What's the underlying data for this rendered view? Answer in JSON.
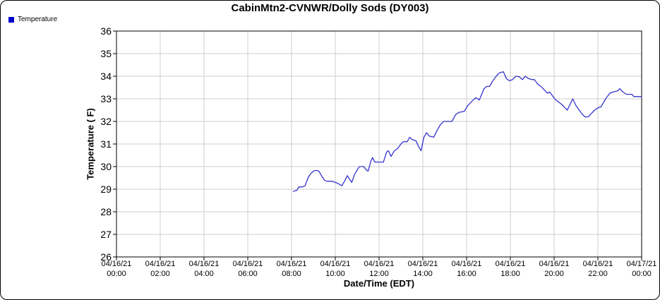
{
  "window": {
    "background": "#ffffff",
    "border_color": "#000000"
  },
  "title": "CabinMtn2-CVNWR/Dolly Sods (DY003)",
  "legend": {
    "position": "top-left",
    "items": [
      {
        "label": "Temperature",
        "color": "#0000cc"
      }
    ]
  },
  "chart_data": {
    "type": "line",
    "title": "CabinMtn2-CVNWR/Dolly Sods (DY003)",
    "xlabel": "Date/Time (EDT)",
    "ylabel": "Temperature ( F)",
    "ylim": [
      26,
      36
    ],
    "xlim_hours": [
      0,
      24
    ],
    "grid": true,
    "grid_color": "#cccccc",
    "axis_color": "#000000",
    "line_color": "#3333cc",
    "y_ticks": [
      26,
      27,
      28,
      29,
      30,
      31,
      32,
      33,
      34,
      35,
      36
    ],
    "x_ticks": [
      {
        "hour": 0,
        "date": "04/16/21",
        "time": "00:00"
      },
      {
        "hour": 2,
        "date": "04/16/21",
        "time": "02:00"
      },
      {
        "hour": 4,
        "date": "04/16/21",
        "time": "04:00"
      },
      {
        "hour": 6,
        "date": "04/16/21",
        "time": "06:00"
      },
      {
        "hour": 8,
        "date": "04/16/21",
        "time": "08:00"
      },
      {
        "hour": 10,
        "date": "04/16/21",
        "time": "10:00"
      },
      {
        "hour": 12,
        "date": "04/16/21",
        "time": "12:00"
      },
      {
        "hour": 14,
        "date": "04/16/21",
        "time": "14:00"
      },
      {
        "hour": 16,
        "date": "04/16/21",
        "time": "16:00"
      },
      {
        "hour": 18,
        "date": "04/16/21",
        "time": "18:00"
      },
      {
        "hour": 20,
        "date": "04/16/21",
        "time": "20:00"
      },
      {
        "hour": 22,
        "date": "04/16/21",
        "time": "22:00"
      },
      {
        "hour": 24,
        "date": "04/17/21",
        "time": "00:00"
      }
    ],
    "series": [
      {
        "name": "Temperature",
        "points": [
          [
            8.08,
            28.9
          ],
          [
            8.17,
            28.93
          ],
          [
            8.25,
            28.95
          ],
          [
            8.33,
            29.1
          ],
          [
            8.5,
            29.1
          ],
          [
            8.62,
            29.15
          ],
          [
            8.75,
            29.5
          ],
          [
            8.87,
            29.68
          ],
          [
            9.0,
            29.8
          ],
          [
            9.13,
            29.83
          ],
          [
            9.25,
            29.8
          ],
          [
            9.4,
            29.55
          ],
          [
            9.5,
            29.4
          ],
          [
            9.63,
            29.35
          ],
          [
            9.87,
            29.35
          ],
          [
            10.0,
            29.3
          ],
          [
            10.13,
            29.25
          ],
          [
            10.3,
            29.15
          ],
          [
            10.45,
            29.4
          ],
          [
            10.55,
            29.6
          ],
          [
            10.68,
            29.4
          ],
          [
            10.75,
            29.3
          ],
          [
            10.88,
            29.65
          ],
          [
            11.0,
            29.85
          ],
          [
            11.1,
            30.0
          ],
          [
            11.3,
            30.0
          ],
          [
            11.42,
            29.85
          ],
          [
            11.5,
            29.8
          ],
          [
            11.63,
            30.25
          ],
          [
            11.7,
            30.4
          ],
          [
            11.8,
            30.2
          ],
          [
            12.0,
            30.2
          ],
          [
            12.2,
            30.2
          ],
          [
            12.35,
            30.65
          ],
          [
            12.43,
            30.7
          ],
          [
            12.55,
            30.45
          ],
          [
            12.7,
            30.7
          ],
          [
            12.85,
            30.8
          ],
          [
            13.0,
            31.0
          ],
          [
            13.1,
            31.1
          ],
          [
            13.28,
            31.1
          ],
          [
            13.4,
            31.3
          ],
          [
            13.5,
            31.2
          ],
          [
            13.68,
            31.15
          ],
          [
            13.8,
            30.9
          ],
          [
            13.92,
            30.7
          ],
          [
            14.05,
            31.3
          ],
          [
            14.17,
            31.5
          ],
          [
            14.3,
            31.35
          ],
          [
            14.5,
            31.3
          ],
          [
            14.65,
            31.6
          ],
          [
            14.8,
            31.85
          ],
          [
            14.95,
            32.0
          ],
          [
            15.33,
            32.0
          ],
          [
            15.5,
            32.3
          ],
          [
            15.65,
            32.4
          ],
          [
            15.9,
            32.45
          ],
          [
            16.05,
            32.7
          ],
          [
            16.25,
            32.9
          ],
          [
            16.42,
            33.05
          ],
          [
            16.58,
            32.95
          ],
          [
            16.8,
            33.45
          ],
          [
            16.92,
            33.55
          ],
          [
            17.05,
            33.55
          ],
          [
            17.2,
            33.8
          ],
          [
            17.35,
            34.0
          ],
          [
            17.5,
            34.15
          ],
          [
            17.68,
            34.2
          ],
          [
            17.82,
            33.9
          ],
          [
            17.95,
            33.8
          ],
          [
            18.1,
            33.85
          ],
          [
            18.25,
            34.0
          ],
          [
            18.4,
            33.98
          ],
          [
            18.55,
            33.85
          ],
          [
            18.68,
            34.0
          ],
          [
            18.82,
            33.9
          ],
          [
            19.0,
            33.85
          ],
          [
            19.1,
            33.85
          ],
          [
            19.25,
            33.65
          ],
          [
            19.4,
            33.55
          ],
          [
            19.55,
            33.4
          ],
          [
            19.7,
            33.25
          ],
          [
            19.8,
            33.3
          ],
          [
            19.95,
            33.1
          ],
          [
            20.03,
            33.0
          ],
          [
            20.15,
            32.9
          ],
          [
            20.35,
            32.75
          ],
          [
            20.5,
            32.6
          ],
          [
            20.6,
            32.5
          ],
          [
            20.75,
            32.8
          ],
          [
            20.85,
            33.0
          ],
          [
            21.0,
            32.7
          ],
          [
            21.15,
            32.5
          ],
          [
            21.3,
            32.3
          ],
          [
            21.42,
            32.2
          ],
          [
            21.55,
            32.2
          ],
          [
            21.7,
            32.35
          ],
          [
            21.85,
            32.5
          ],
          [
            22.0,
            32.6
          ],
          [
            22.15,
            32.65
          ],
          [
            22.35,
            33.0
          ],
          [
            22.55,
            33.25
          ],
          [
            22.7,
            33.3
          ],
          [
            22.9,
            33.35
          ],
          [
            23.0,
            33.45
          ],
          [
            23.15,
            33.3
          ],
          [
            23.3,
            33.2
          ],
          [
            23.55,
            33.2
          ],
          [
            23.65,
            33.1
          ],
          [
            23.85,
            33.1
          ],
          [
            24.0,
            33.1
          ]
        ]
      }
    ]
  }
}
